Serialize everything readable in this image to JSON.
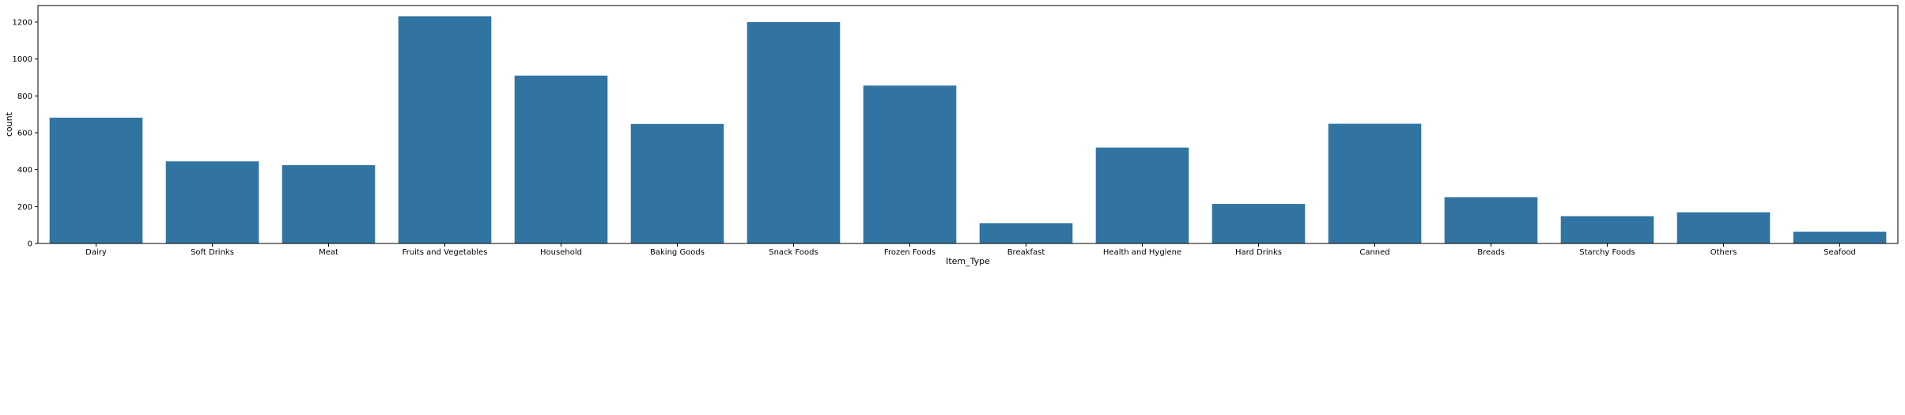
{
  "chart_data": {
    "type": "bar",
    "categories": [
      "Dairy",
      "Soft Drinks",
      "Meat",
      "Fruits and Vegetables",
      "Household",
      "Baking Goods",
      "Snack Foods",
      "Frozen Foods",
      "Breakfast",
      "Health and Hygiene",
      "Hard Drinks",
      "Canned",
      "Breads",
      "Starchy Foods",
      "Others",
      "Seafood"
    ],
    "values": [
      682,
      445,
      425,
      1232,
      910,
      648,
      1200,
      856,
      110,
      520,
      214,
      649,
      251,
      148,
      169,
      64
    ],
    "xlabel": "Item_Type",
    "ylabel": "count",
    "ylim": [
      0,
      1290
    ],
    "yticks": [
      0,
      200,
      400,
      600,
      800,
      1000,
      1200
    ],
    "bar_color": "#3274a1",
    "grid": false,
    "legend": "none"
  }
}
